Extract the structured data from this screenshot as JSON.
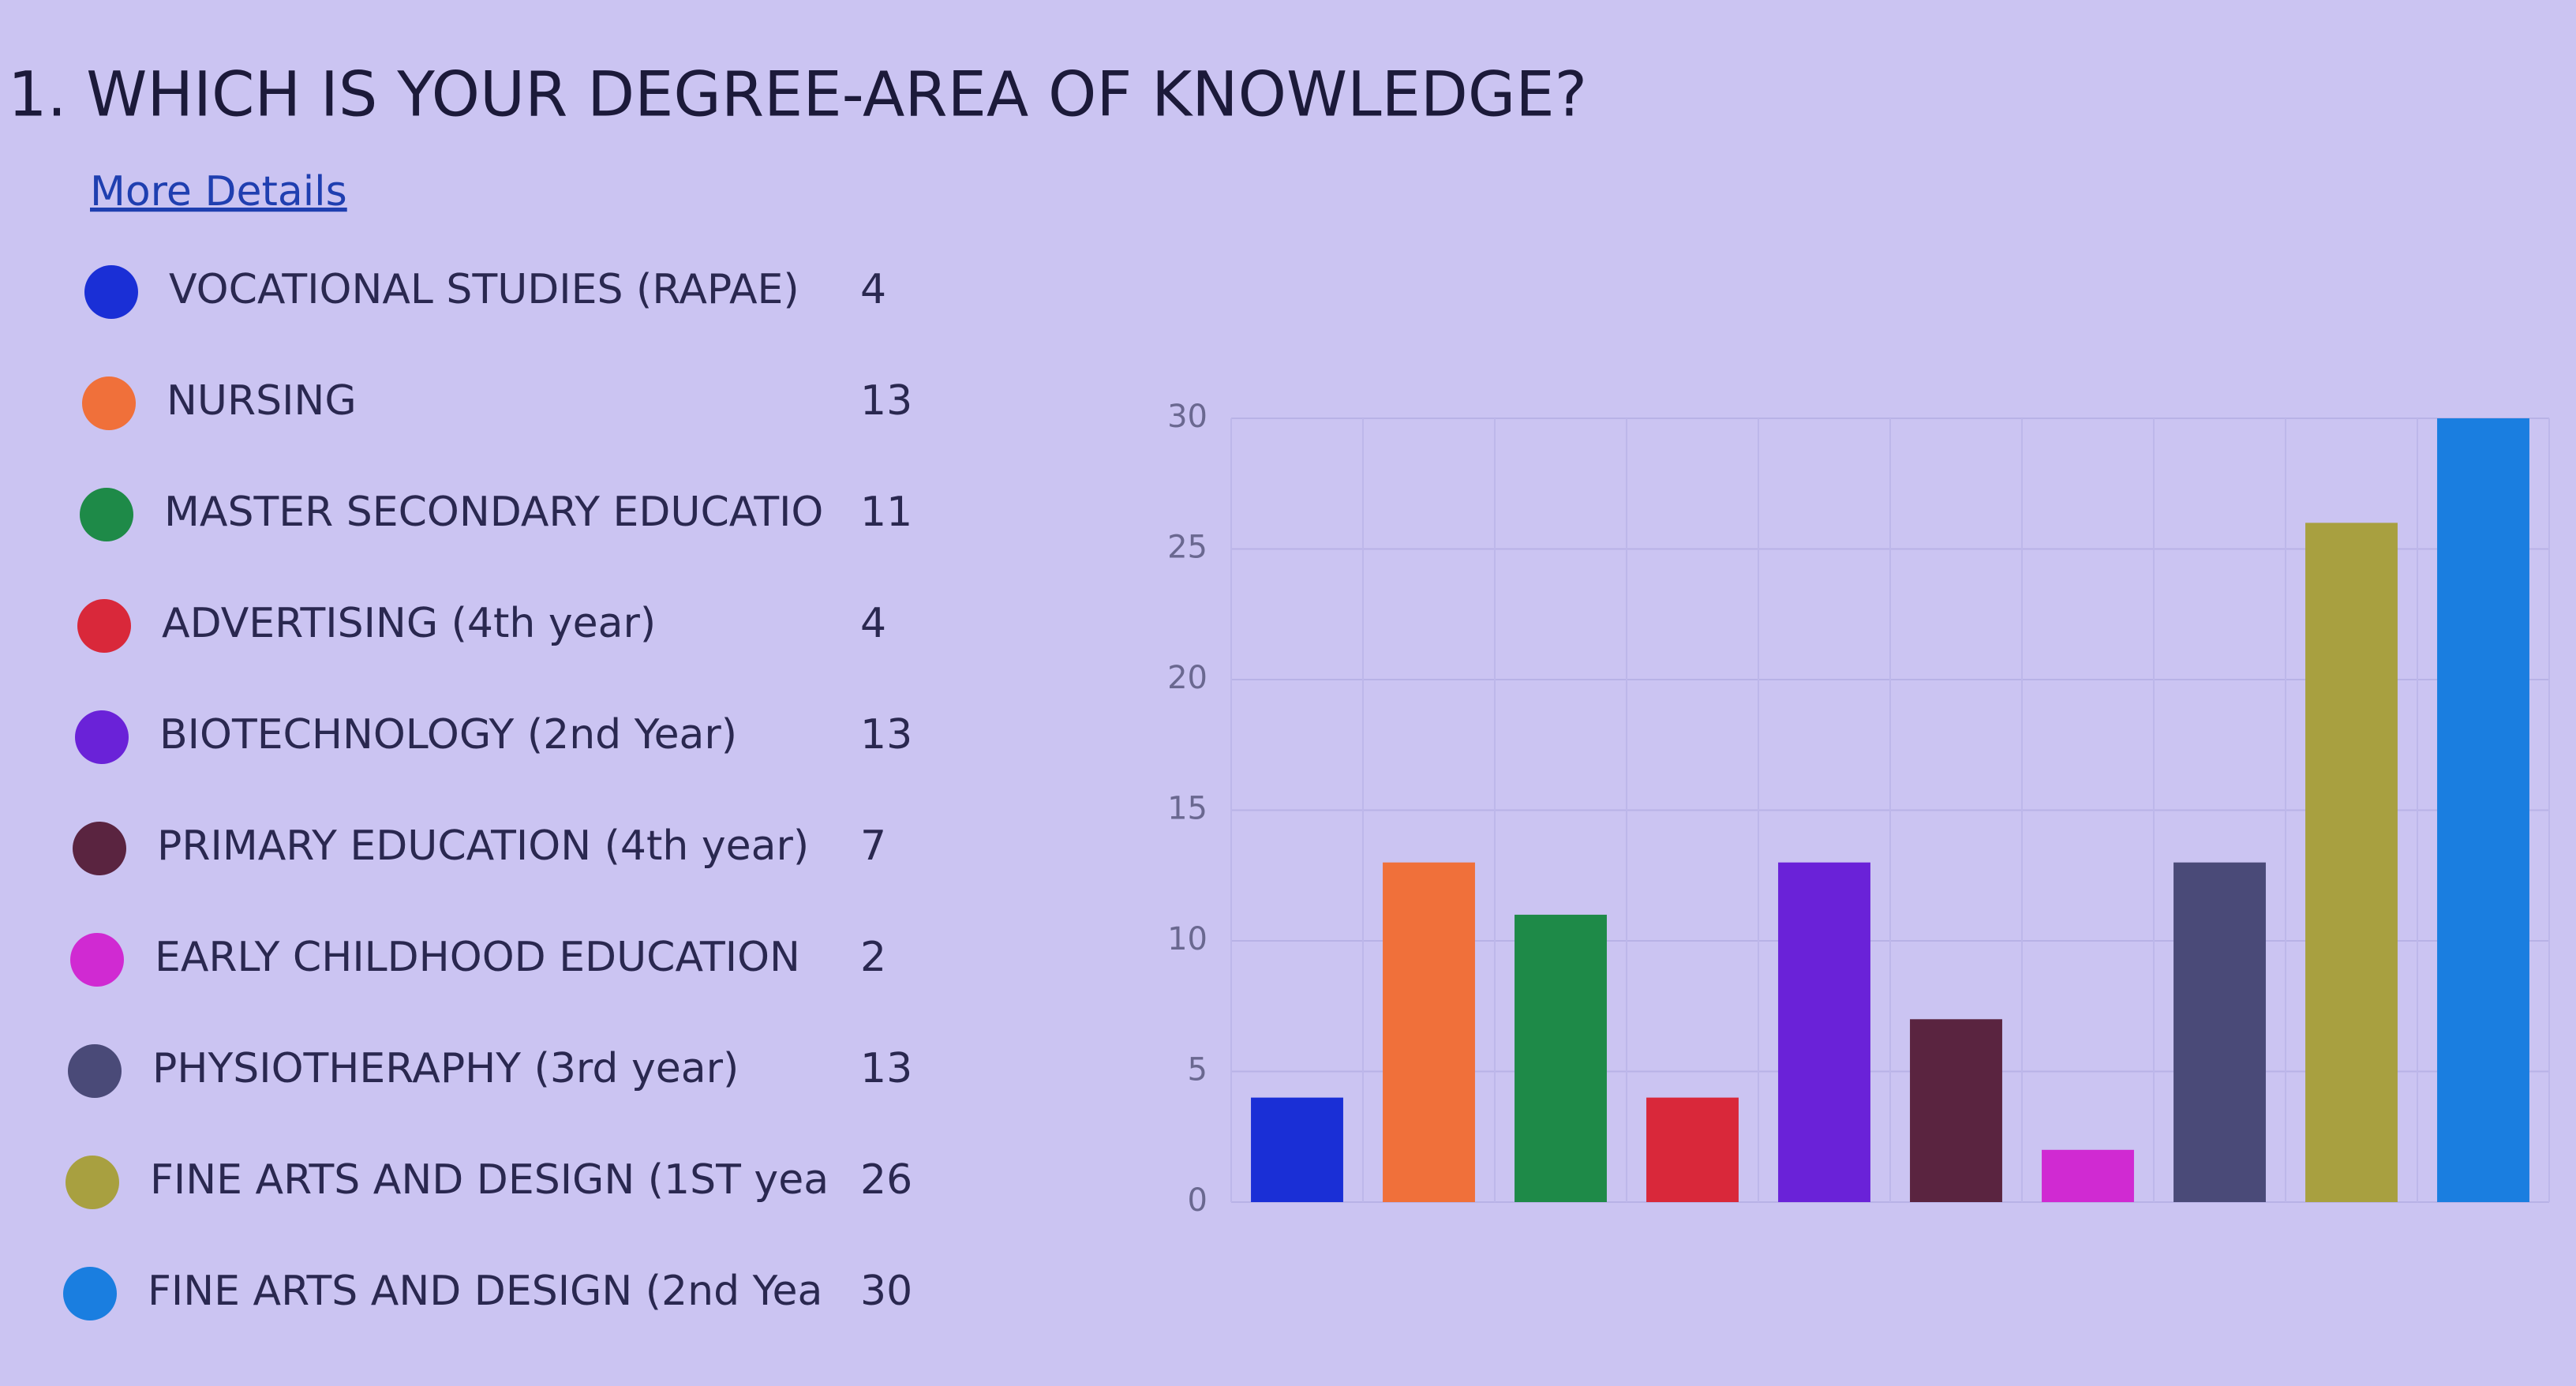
{
  "chart_data": {
    "type": "bar",
    "title": "1. WHICH IS YOUR DEGREE-AREA OF KNOWLEDGE?",
    "link_text": "More Details",
    "categories": [
      "VOCATIONAL STUDIES (RAPAE)",
      "NURSING",
      "MASTER SECONDARY EDUCATIO",
      "ADVERTISING (4th year)",
      "BIOTECHNOLOGY (2nd Year)",
      "PRIMARY EDUCATION (4th year)",
      "EARLY CHILDHOOD EDUCATION",
      "PHYSIOTHERAPHY (3rd year)",
      "FINE ARTS AND DESIGN (1ST yea",
      "FINE ARTS AND DESIGN (2nd Yea"
    ],
    "values": [
      4,
      13,
      11,
      4,
      13,
      7,
      2,
      13,
      26,
      30
    ],
    "colors": [
      "#1a2fd6",
      "#f0703a",
      "#1e8a48",
      "#d9283a",
      "#6a22d8",
      "#5a2440",
      "#d02ad2",
      "#4a4a78",
      "#a8a040",
      "#1a7ee0"
    ],
    "ylim": [
      0,
      30
    ],
    "yticks": [
      0,
      5,
      10,
      15,
      20,
      25,
      30
    ],
    "grid": true
  }
}
